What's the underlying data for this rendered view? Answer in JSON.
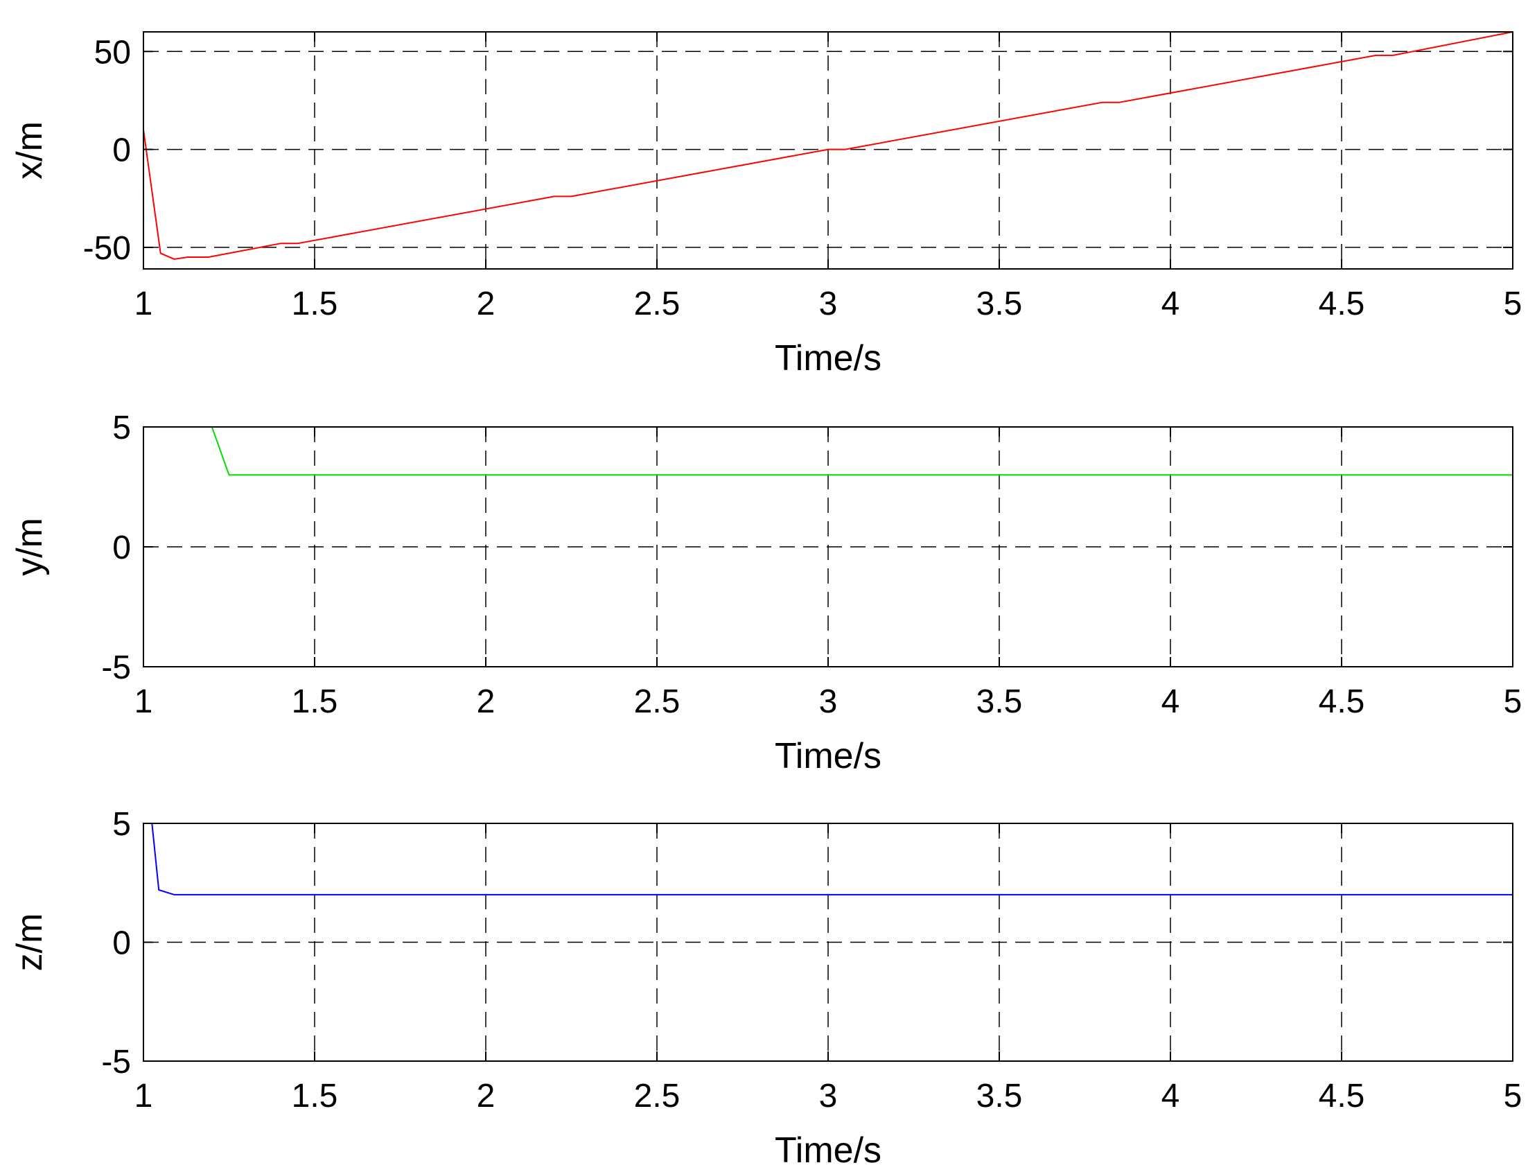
{
  "chart_data": [
    {
      "type": "line",
      "xlabel": "Time/s",
      "ylabel": "x/m",
      "xlim": [
        1,
        5
      ],
      "ylim": [
        -61,
        60
      ],
      "xticks": [
        1,
        1.5,
        2,
        2.5,
        3,
        3.5,
        4,
        4.5,
        5
      ],
      "xtick_labels": [
        "1",
        "1.5",
        "2",
        "2.5",
        "3",
        "3.5",
        "4",
        "4.5",
        "5"
      ],
      "yticks": [
        -50,
        0,
        50
      ],
      "ytick_labels": [
        "-50",
        "0",
        "50"
      ],
      "grid": true,
      "color": "#ff0000",
      "series": [
        {
          "x": [
            1.0,
            1.05,
            1.09,
            1.13,
            1.19,
            1.4,
            1.45,
            2.2,
            2.25,
            3.0,
            3.05,
            3.8,
            3.85,
            4.6,
            4.65,
            5.0
          ],
          "y": [
            10,
            -53,
            -56,
            -55,
            -55,
            -48,
            -48,
            -24,
            -24,
            0,
            0,
            24,
            24,
            48,
            48,
            60
          ]
        }
      ]
    },
    {
      "type": "line",
      "xlabel": "Time/s",
      "ylabel": "y/m",
      "xlim": [
        1,
        5
      ],
      "ylim": [
        -5,
        5
      ],
      "xticks": [
        1,
        1.5,
        2,
        2.5,
        3,
        3.5,
        4,
        4.5,
        5
      ],
      "xtick_labels": [
        "1",
        "1.5",
        "2",
        "2.5",
        "3",
        "3.5",
        "4",
        "4.5",
        "5"
      ],
      "yticks": [
        -5,
        0,
        5
      ],
      "ytick_labels": [
        "-5",
        "0",
        "5"
      ],
      "grid": true,
      "color": "#00dd00",
      "series": [
        {
          "x": [
            1.2,
            1.25,
            5.0
          ],
          "y": [
            5,
            3,
            3
          ]
        }
      ]
    },
    {
      "type": "line",
      "xlabel": "Time/s",
      "ylabel": "z/m",
      "xlim": [
        1,
        5
      ],
      "ylim": [
        -5,
        5
      ],
      "xticks": [
        1,
        1.5,
        2,
        2.5,
        3,
        3.5,
        4,
        4.5,
        5
      ],
      "xtick_labels": [
        "1",
        "1.5",
        "2",
        "2.5",
        "3",
        "3.5",
        "4",
        "4.5",
        "5"
      ],
      "yticks": [
        -5,
        0,
        5
      ],
      "ytick_labels": [
        "-5",
        "0",
        "5"
      ],
      "grid": true,
      "color": "#0000ff",
      "series": [
        {
          "x": [
            1.025,
            1.045,
            1.09,
            5.0
          ],
          "y": [
            5,
            2.2,
            2,
            2
          ]
        }
      ]
    }
  ]
}
